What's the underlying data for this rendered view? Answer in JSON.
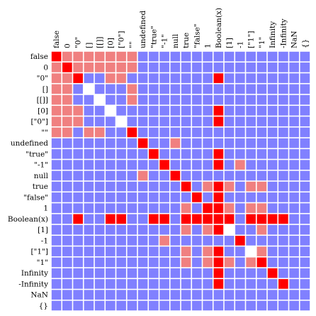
{
  "chart_data": {
    "type": "heatmap",
    "title": "",
    "xlabel": "",
    "ylabel": "",
    "grid": true,
    "legend": "none",
    "colors": {
      "strict_equal": "#ff0000",
      "loose_equal": "#f08080",
      "not_equal": "#8080ff",
      "self_unequal": "#ffffff",
      "gridline": "#ffffff",
      "label": "#000000"
    },
    "row_labels": [
      "false",
      "0",
      "\"0\"",
      "[]",
      "[[]]",
      "[0]",
      "[\"0\"]",
      "\"\"",
      "undefined",
      "\"true\"",
      "\"-1\"",
      "null",
      "true",
      "\"false\"",
      "1",
      "Boolean(x)",
      "[1]",
      "-1",
      "[\"1\"]",
      "\"1\"",
      "Infinity",
      "-Infinity",
      "NaN",
      "{}"
    ],
    "col_labels": [
      "false",
      "0",
      "\"0\"",
      "[]",
      "[[]]",
      "[0]",
      "[\"0\"]",
      "\"\"",
      "undefined",
      "\"true\"",
      "\"-1\"",
      "null",
      "true",
      "\"false\"",
      "1",
      "Boolean(x)",
      "[1]",
      "-1",
      "[\"1\"]",
      "\"1\"",
      "Infinity",
      "-Infinity",
      "NaN",
      "{}"
    ],
    "value_legend": "0 = not equal, 1 = loose equal (==), 2 = strict equal (===), 3 = not equal to itself",
    "matrix": [
      [
        2,
        1,
        1,
        1,
        1,
        1,
        1,
        1,
        0,
        0,
        0,
        0,
        0,
        0,
        0,
        0,
        0,
        0,
        0,
        0,
        0,
        0,
        0,
        0
      ],
      [
        1,
        2,
        1,
        1,
        1,
        1,
        1,
        1,
        0,
        0,
        0,
        0,
        0,
        0,
        0,
        0,
        0,
        0,
        0,
        0,
        0,
        0,
        0,
        0
      ],
      [
        1,
        1,
        2,
        0,
        0,
        1,
        1,
        0,
        0,
        0,
        0,
        0,
        0,
        0,
        0,
        2,
        0,
        0,
        0,
        0,
        0,
        0,
        0,
        0
      ],
      [
        1,
        1,
        0,
        3,
        0,
        0,
        0,
        1,
        0,
        0,
        0,
        0,
        0,
        0,
        0,
        0,
        0,
        0,
        0,
        0,
        0,
        0,
        0,
        0
      ],
      [
        1,
        1,
        0,
        0,
        3,
        0,
        0,
        1,
        0,
        0,
        0,
        0,
        0,
        0,
        0,
        0,
        0,
        0,
        0,
        0,
        0,
        0,
        0,
        0
      ],
      [
        1,
        1,
        1,
        0,
        0,
        3,
        0,
        0,
        0,
        0,
        0,
        0,
        0,
        0,
        0,
        2,
        0,
        0,
        0,
        0,
        0,
        0,
        0,
        0
      ],
      [
        1,
        1,
        1,
        0,
        0,
        0,
        3,
        0,
        0,
        0,
        0,
        0,
        0,
        0,
        0,
        2,
        0,
        0,
        0,
        0,
        0,
        0,
        0,
        0
      ],
      [
        1,
        1,
        0,
        1,
        1,
        0,
        0,
        2,
        0,
        0,
        0,
        0,
        0,
        0,
        0,
        0,
        0,
        0,
        0,
        0,
        0,
        0,
        0,
        0
      ],
      [
        0,
        0,
        0,
        0,
        0,
        0,
        0,
        0,
        2,
        0,
        0,
        1,
        0,
        0,
        0,
        0,
        0,
        0,
        0,
        0,
        0,
        0,
        0,
        0
      ],
      [
        0,
        0,
        0,
        0,
        0,
        0,
        0,
        0,
        0,
        2,
        0,
        0,
        0,
        0,
        0,
        2,
        0,
        0,
        0,
        0,
        0,
        0,
        0,
        0
      ],
      [
        0,
        0,
        0,
        0,
        0,
        0,
        0,
        0,
        0,
        0,
        2,
        0,
        0,
        0,
        0,
        2,
        0,
        1,
        0,
        0,
        0,
        0,
        0,
        0
      ],
      [
        0,
        0,
        0,
        0,
        0,
        0,
        0,
        0,
        1,
        0,
        0,
        2,
        0,
        0,
        0,
        0,
        0,
        0,
        0,
        0,
        0,
        0,
        0,
        0
      ],
      [
        0,
        0,
        0,
        0,
        0,
        0,
        0,
        0,
        0,
        0,
        0,
        0,
        2,
        0,
        1,
        2,
        1,
        0,
        1,
        1,
        0,
        0,
        0,
        0
      ],
      [
        0,
        0,
        0,
        0,
        0,
        0,
        0,
        0,
        0,
        0,
        0,
        0,
        0,
        2,
        0,
        2,
        0,
        0,
        0,
        0,
        0,
        0,
        0,
        0
      ],
      [
        0,
        0,
        0,
        0,
        0,
        0,
        0,
        0,
        0,
        0,
        0,
        0,
        1,
        0,
        2,
        2,
        1,
        0,
        1,
        1,
        0,
        0,
        0,
        0
      ],
      [
        0,
        0,
        2,
        0,
        0,
        2,
        2,
        0,
        0,
        2,
        2,
        0,
        2,
        2,
        2,
        2,
        2,
        0,
        2,
        2,
        2,
        2,
        0,
        0
      ],
      [
        0,
        0,
        0,
        0,
        0,
        0,
        0,
        0,
        0,
        0,
        0,
        0,
        1,
        0,
        1,
        2,
        3,
        0,
        0,
        1,
        0,
        0,
        0,
        0
      ],
      [
        0,
        0,
        0,
        0,
        0,
        0,
        0,
        0,
        0,
        0,
        1,
        0,
        0,
        0,
        0,
        0,
        0,
        2,
        0,
        0,
        0,
        0,
        0,
        0
      ],
      [
        0,
        0,
        0,
        0,
        0,
        0,
        0,
        0,
        0,
        0,
        0,
        0,
        1,
        0,
        1,
        2,
        0,
        0,
        3,
        1,
        0,
        0,
        0,
        0
      ],
      [
        0,
        0,
        0,
        0,
        0,
        0,
        0,
        0,
        0,
        0,
        0,
        0,
        1,
        0,
        1,
        2,
        1,
        0,
        1,
        2,
        0,
        0,
        0,
        0
      ],
      [
        0,
        0,
        0,
        0,
        0,
        0,
        0,
        0,
        0,
        0,
        0,
        0,
        0,
        0,
        0,
        2,
        0,
        0,
        0,
        0,
        2,
        0,
        0,
        0
      ],
      [
        0,
        0,
        0,
        0,
        0,
        0,
        0,
        0,
        0,
        0,
        0,
        0,
        0,
        0,
        0,
        2,
        0,
        0,
        0,
        0,
        0,
        2,
        0,
        0
      ],
      [
        0,
        0,
        0,
        0,
        0,
        0,
        0,
        0,
        0,
        0,
        0,
        0,
        0,
        0,
        0,
        0,
        0,
        0,
        0,
        0,
        0,
        0,
        0,
        0
      ],
      [
        0,
        0,
        0,
        0,
        0,
        0,
        0,
        0,
        0,
        0,
        0,
        0,
        0,
        0,
        0,
        0,
        0,
        0,
        0,
        0,
        0,
        0,
        0,
        0
      ]
    ]
  }
}
